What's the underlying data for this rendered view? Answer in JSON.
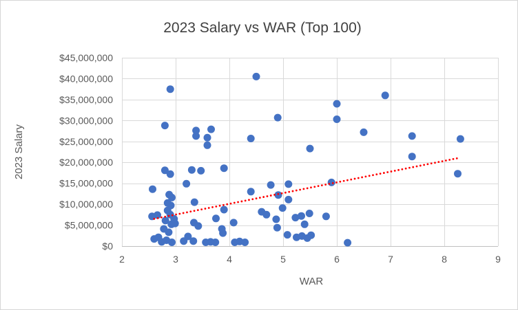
{
  "chart_data": {
    "type": "scatter",
    "title": "2023 Salary vs WAR (Top 100)",
    "xlabel": "WAR",
    "ylabel": "2023 Salary",
    "grid": true,
    "legend": "none",
    "x_axis": {
      "min": 2,
      "max": 9,
      "ticks": [
        2,
        3,
        4,
        5,
        6,
        7,
        8,
        9
      ]
    },
    "y_axis": {
      "min": 0,
      "max": 45,
      "unit": "million USD",
      "ticks": [
        0,
        5,
        10,
        15,
        20,
        25,
        30,
        35,
        40,
        45
      ],
      "tick_labels": [
        "$0",
        "$5,000,000",
        "$10,000,000",
        "$15,000,000",
        "$20,000,000",
        "$25,000,000",
        "$30,000,000",
        "$35,000,000",
        "$40,000,000",
        "$45,000,000"
      ]
    },
    "point_color": "#4472C4",
    "gridline_color": "#D9D9D9",
    "axis_line_color": "#BFBFBF",
    "points_unit": "[WAR, salary in million USD]",
    "points": [
      [
        2.56,
        7.1
      ],
      [
        2.57,
        13.6
      ],
      [
        2.6,
        1.7
      ],
      [
        2.66,
        7.4
      ],
      [
        2.68,
        2.1
      ],
      [
        2.74,
        1.0
      ],
      [
        2.78,
        4.1
      ],
      [
        2.8,
        28.8
      ],
      [
        2.8,
        18.1
      ],
      [
        2.81,
        6.1
      ],
      [
        2.83,
        1.4
      ],
      [
        2.85,
        10.3
      ],
      [
        2.85,
        8.5
      ],
      [
        2.87,
        3.3
      ],
      [
        2.88,
        12.3
      ],
      [
        2.9,
        37.5
      ],
      [
        2.9,
        17.2
      ],
      [
        2.9,
        7.5
      ],
      [
        2.91,
        9.7
      ],
      [
        2.92,
        5.2
      ],
      [
        2.93,
        11.6
      ],
      [
        2.93,
        0.9
      ],
      [
        2.97,
        6.5
      ],
      [
        2.99,
        5.4
      ],
      [
        3.15,
        1.2
      ],
      [
        3.2,
        14.9
      ],
      [
        3.23,
        2.3
      ],
      [
        3.3,
        18.2
      ],
      [
        3.33,
        1.2
      ],
      [
        3.34,
        5.6
      ],
      [
        3.35,
        10.5
      ],
      [
        3.38,
        27.6
      ],
      [
        3.38,
        26.3
      ],
      [
        3.42,
        4.8
      ],
      [
        3.47,
        18.0
      ],
      [
        3.56,
        0.9
      ],
      [
        3.59,
        25.9
      ],
      [
        3.59,
        24.1
      ],
      [
        3.65,
        1.0
      ],
      [
        3.66,
        27.9
      ],
      [
        3.74,
        0.9
      ],
      [
        3.75,
        6.6
      ],
      [
        3.86,
        4.1
      ],
      [
        3.88,
        3.1
      ],
      [
        3.9,
        18.6
      ],
      [
        3.9,
        8.7
      ],
      [
        4.08,
        5.6
      ],
      [
        4.1,
        0.9
      ],
      [
        4.19,
        1.1
      ],
      [
        4.29,
        0.9
      ],
      [
        4.4,
        25.7
      ],
      [
        4.4,
        13.0
      ],
      [
        4.5,
        40.5
      ],
      [
        4.6,
        8.2
      ],
      [
        4.69,
        7.5
      ],
      [
        4.77,
        14.6
      ],
      [
        4.87,
        6.4
      ],
      [
        4.89,
        4.4
      ],
      [
        4.9,
        30.7
      ],
      [
        4.91,
        12.2
      ],
      [
        4.99,
        9.1
      ],
      [
        5.08,
        2.7
      ],
      [
        5.1,
        14.8
      ],
      [
        5.1,
        11.1
      ],
      [
        5.23,
        6.8
      ],
      [
        5.25,
        2.1
      ],
      [
        5.34,
        7.2
      ],
      [
        5.35,
        2.4
      ],
      [
        5.4,
        5.2
      ],
      [
        5.45,
        1.9
      ],
      [
        5.49,
        7.8
      ],
      [
        5.5,
        23.3
      ],
      [
        5.52,
        2.6
      ],
      [
        5.8,
        7.1
      ],
      [
        5.9,
        15.2
      ],
      [
        6.0,
        34.0
      ],
      [
        6.0,
        30.3
      ],
      [
        6.2,
        0.8
      ],
      [
        6.5,
        27.2
      ],
      [
        6.9,
        36.0
      ],
      [
        7.4,
        26.3
      ],
      [
        7.4,
        21.4
      ],
      [
        8.25,
        17.3
      ],
      [
        8.3,
        25.6
      ]
    ],
    "trendline": {
      "style": "dotted",
      "color": "#FF0000",
      "x_start": 2.6,
      "y_start": 6.5,
      "x_end": 8.25,
      "y_end": 21.0
    }
  }
}
